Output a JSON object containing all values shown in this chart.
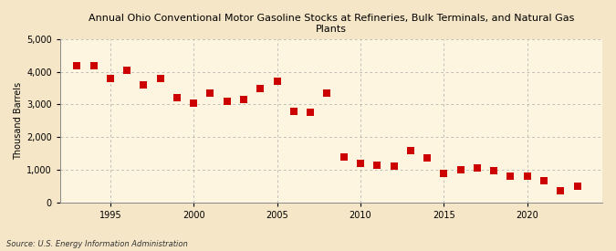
{
  "title": "Annual Ohio Conventional Motor Gasoline Stocks at Refineries, Bulk Terminals, and Natural Gas\nPlants",
  "ylabel": "Thousand Barrels",
  "source": "Source: U.S. Energy Information Administration",
  "background_color": "#f5e6c8",
  "plot_bg_color": "#fdf5e0",
  "years": [
    1993,
    1994,
    1995,
    1996,
    1997,
    1998,
    1999,
    2000,
    2001,
    2002,
    2003,
    2004,
    2005,
    2006,
    2007,
    2008,
    2009,
    2010,
    2011,
    2012,
    2013,
    2014,
    2015,
    2016,
    2017,
    2018,
    2019,
    2020,
    2021,
    2022,
    2023
  ],
  "values": [
    4200,
    4200,
    3800,
    4050,
    3600,
    3800,
    3200,
    3050,
    3350,
    3100,
    3150,
    3500,
    3700,
    2800,
    2750,
    3350,
    1380,
    1200,
    1130,
    1100,
    1600,
    1350,
    875,
    1000,
    1050,
    975,
    800,
    800,
    650,
    350,
    500
  ],
  "marker_color": "#cc0000",
  "marker_size": 36,
  "ylim": [
    0,
    5000
  ],
  "yticks": [
    0,
    1000,
    2000,
    3000,
    4000,
    5000
  ],
  "xticks": [
    1995,
    2000,
    2005,
    2010,
    2015,
    2020
  ],
  "xlim": [
    1992,
    2024.5
  ]
}
